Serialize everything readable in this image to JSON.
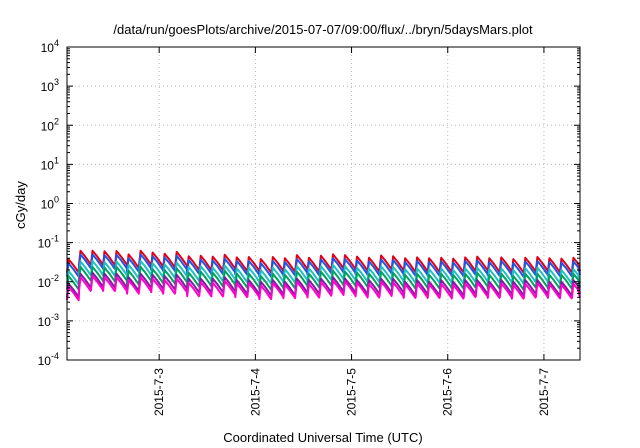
{
  "chart_data": {
    "type": "line",
    "title": "/data/run/goesPlots/archive/2015-07-07/09:00/flux/../bryn/5daysMars.plot",
    "xlabel": "Coordinated Universal Time (UTC)",
    "ylabel": "cGy/day",
    "yscale": "log",
    "ylim": [
      0.0001,
      10000
    ],
    "xlim": [
      "2015-07-02 01:00",
      "2015-07-07 09:00"
    ],
    "y_ticks": [
      {
        "base": "10",
        "exp": "-4"
      },
      {
        "base": "10",
        "exp": "-3"
      },
      {
        "base": "10",
        "exp": "-2"
      },
      {
        "base": "10",
        "exp": "-1"
      },
      {
        "base": "10",
        "exp": "0"
      },
      {
        "base": "10",
        "exp": "1"
      },
      {
        "base": "10",
        "exp": "2"
      },
      {
        "base": "10",
        "exp": "3"
      },
      {
        "base": "10",
        "exp": "4"
      }
    ],
    "x_ticks": [
      "2015-7-3",
      "2015-7-4",
      "2015-7-5",
      "2015-7-6",
      "2015-7-7"
    ],
    "grid": true,
    "period_hours": 3,
    "series": [
      {
        "color": "#e0001c",
        "values": [
          0.038,
          0.062,
          0.062,
          0.06,
          0.061,
          0.05,
          0.062,
          0.056,
          0.052,
          0.058,
          0.045,
          0.046,
          0.044,
          0.049,
          0.042,
          0.043,
          0.038,
          0.043,
          0.04,
          0.048,
          0.041,
          0.046,
          0.05,
          0.048,
          0.044,
          0.041,
          0.047,
          0.045,
          0.04,
          0.042,
          0.04,
          0.041,
          0.039,
          0.042,
          0.044,
          0.04,
          0.042,
          0.038,
          0.041,
          0.043,
          0.04,
          0.039,
          0.041
        ]
      },
      {
        "color": "#2255dd",
        "values": [
          0.03,
          0.05,
          0.05,
          0.048,
          0.049,
          0.04,
          0.05,
          0.045,
          0.042,
          0.046,
          0.036,
          0.037,
          0.035,
          0.039,
          0.034,
          0.034,
          0.03,
          0.034,
          0.032,
          0.038,
          0.033,
          0.037,
          0.04,
          0.038,
          0.035,
          0.033,
          0.037,
          0.036,
          0.032,
          0.034,
          0.032,
          0.033,
          0.031,
          0.034,
          0.035,
          0.032,
          0.034,
          0.03,
          0.033,
          0.034,
          0.032,
          0.031,
          0.033
        ]
      },
      {
        "color": "#20c0c0",
        "values": [
          0.019,
          0.033,
          0.034,
          0.032,
          0.033,
          0.027,
          0.034,
          0.03,
          0.028,
          0.031,
          0.024,
          0.025,
          0.023,
          0.026,
          0.022,
          0.023,
          0.02,
          0.023,
          0.021,
          0.025,
          0.022,
          0.025,
          0.027,
          0.025,
          0.023,
          0.022,
          0.025,
          0.024,
          0.021,
          0.022,
          0.021,
          0.022,
          0.02,
          0.022,
          0.023,
          0.021,
          0.022,
          0.02,
          0.022,
          0.023,
          0.021,
          0.02,
          0.021
        ]
      },
      {
        "color": "#00a060",
        "values": [
          0.014,
          0.024,
          0.024,
          0.023,
          0.024,
          0.019,
          0.024,
          0.021,
          0.02,
          0.022,
          0.017,
          0.018,
          0.017,
          0.019,
          0.016,
          0.016,
          0.014,
          0.016,
          0.015,
          0.018,
          0.016,
          0.018,
          0.019,
          0.018,
          0.017,
          0.016,
          0.018,
          0.017,
          0.015,
          0.016,
          0.015,
          0.016,
          0.015,
          0.016,
          0.017,
          0.015,
          0.016,
          0.014,
          0.016,
          0.016,
          0.015,
          0.015,
          0.016
        ]
      },
      {
        "color": "#7a1fa0",
        "values": [
          0.009,
          0.016,
          0.017,
          0.016,
          0.016,
          0.013,
          0.016,
          0.015,
          0.014,
          0.015,
          0.012,
          0.012,
          0.012,
          0.013,
          0.011,
          0.011,
          0.01,
          0.011,
          0.01,
          0.012,
          0.011,
          0.012,
          0.013,
          0.012,
          0.011,
          0.011,
          0.012,
          0.012,
          0.01,
          0.011,
          0.01,
          0.011,
          0.01,
          0.011,
          0.011,
          0.01,
          0.011,
          0.01,
          0.011,
          0.011,
          0.01,
          0.01,
          0.011
        ]
      },
      {
        "color": "#ff00cc",
        "values": [
          0.0075,
          0.013,
          0.014,
          0.013,
          0.013,
          0.011,
          0.013,
          0.012,
          0.011,
          0.012,
          0.0095,
          0.0098,
          0.0094,
          0.0105,
          0.009,
          0.0092,
          0.008,
          0.0092,
          0.0085,
          0.01,
          0.0088,
          0.0098,
          0.0106,
          0.0102,
          0.0094,
          0.0088,
          0.01,
          0.0096,
          0.0086,
          0.009,
          0.0086,
          0.0088,
          0.0083,
          0.009,
          0.0094,
          0.0086,
          0.009,
          0.0082,
          0.0088,
          0.0092,
          0.0086,
          0.0084,
          0.0088
        ]
      }
    ]
  }
}
